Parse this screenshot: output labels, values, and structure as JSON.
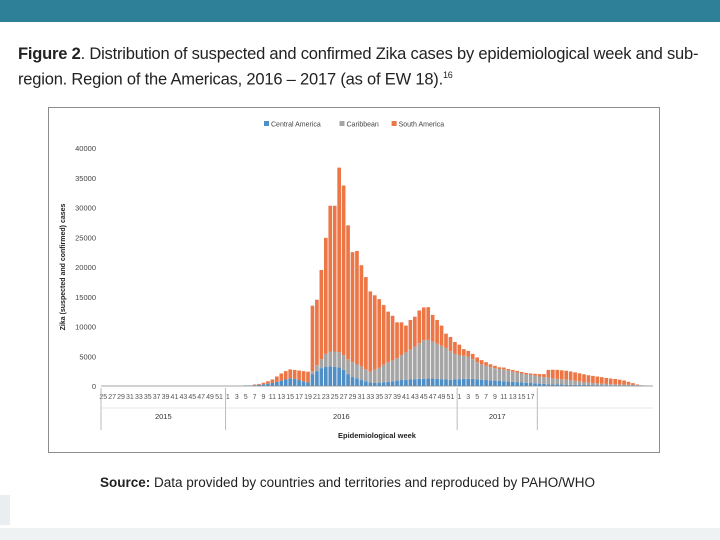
{
  "slide": {
    "figure_label": "Figure 2",
    "caption": ". Distribution of suspected and confirmed Zika cases by epidemiological week and sub-region. Region of the Americas, 2016 – 2017 (as of EW 18).",
    "caption_ref": "16",
    "source_label": "Source:",
    "source_text": " Data provided by countries and territories and reproduced by PAHO/WHO"
  },
  "chart_data": {
    "type": "bar",
    "stacked": true,
    "title": "",
    "xlabel": "Epidemiological week",
    "ylabel": "Zika (suspected and confirmed) cases",
    "ylim": [
      0,
      40000
    ],
    "yticks": [
      0,
      5000,
      10000,
      15000,
      20000,
      25000,
      30000,
      35000,
      40000
    ],
    "legend_position": "top",
    "colors": {
      "Central America": "#4f8fc6",
      "Caribbean": "#a5a5a5",
      "South America": "#ec7645"
    },
    "week_labels": {
      "2015": [
        25,
        27,
        29,
        31,
        33,
        35,
        37,
        39,
        41,
        43,
        45,
        47,
        49,
        51
      ],
      "2016": [
        1,
        3,
        5,
        7,
        9,
        11,
        13,
        15,
        17,
        19,
        21,
        23,
        25,
        27,
        29,
        31,
        33,
        35,
        37,
        39,
        41,
        43,
        45,
        47,
        49,
        51
      ],
      "2017": [
        1,
        3,
        5,
        7,
        9,
        11,
        13,
        15,
        17
      ]
    },
    "year_groups": [
      "2015",
      "2016",
      "2017"
    ],
    "series": [
      {
        "name": "Central America",
        "values": [
          0,
          0,
          0,
          0,
          0,
          0,
          0,
          0,
          0,
          0,
          0,
          0,
          0,
          0,
          0,
          0,
          0,
          0,
          0,
          0,
          0,
          0,
          0,
          0,
          0,
          0,
          0,
          0,
          0,
          0,
          0,
          0,
          100,
          100,
          150,
          200,
          300,
          400,
          500,
          700,
          900,
          1100,
          1300,
          1200,
          1000,
          800,
          600,
          2000,
          2500,
          3000,
          3200,
          3300,
          3200,
          3100,
          2700,
          2000,
          1500,
          1300,
          1000,
          800,
          600,
          550,
          500,
          600,
          700,
          800,
          900,
          1000,
          1050,
          1100,
          1150,
          1200,
          1200,
          1250,
          1250,
          1200,
          1150,
          1100,
          1050,
          1100,
          1150,
          1200,
          1200,
          1200,
          1100,
          1050,
          1000,
          950,
          900,
          850,
          800,
          750,
          700,
          650,
          600,
          550,
          500,
          450,
          400,
          350,
          300,
          280,
          260,
          240,
          220,
          200,
          190,
          180,
          170,
          160,
          150,
          140,
          130,
          120,
          110,
          100,
          100,
          90,
          90,
          80,
          70,
          60,
          50,
          30
        ],
        "values_note": "EW 25/2015 through EW 18/2017"
      },
      {
        "name": "Caribbean",
        "values": [
          0,
          0,
          0,
          0,
          0,
          0,
          0,
          0,
          0,
          0,
          0,
          0,
          0,
          0,
          0,
          0,
          0,
          0,
          0,
          0,
          0,
          0,
          0,
          0,
          0,
          0,
          0,
          0,
          0,
          0,
          0,
          0,
          0,
          0,
          0,
          0,
          0,
          0,
          0,
          0,
          0,
          0,
          0,
          0,
          0,
          0,
          0,
          500,
          1000,
          1500,
          2200,
          2500,
          2600,
          2600,
          2500,
          2500,
          2500,
          2400,
          2300,
          2000,
          1800,
          2200,
          2600,
          3000,
          3300,
          3500,
          3800,
          4200,
          4600,
          5000,
          5500,
          6000,
          6500,
          6500,
          6200,
          5900,
          5600,
          5300,
          4800,
          4300,
          4000,
          3900,
          3700,
          3300,
          2900,
          2600,
          2400,
          2200,
          2100,
          2000,
          2000,
          1800,
          1700,
          1600,
          1500,
          1400,
          1350,
          1300,
          1200,
          1150,
          1100,
          1000,
          950,
          900,
          850,
          800,
          700,
          600,
          500,
          400,
          350,
          300,
          260,
          230,
          200,
          180,
          160,
          140,
          120,
          100,
          80,
          60,
          40,
          20
        ]
      },
      {
        "name": "South America",
        "values": [
          0,
          0,
          0,
          0,
          0,
          0,
          0,
          0,
          0,
          0,
          0,
          0,
          0,
          0,
          0,
          0,
          0,
          0,
          0,
          0,
          0,
          0,
          0,
          0,
          0,
          0,
          0,
          0,
          0,
          0,
          0,
          0,
          0,
          0,
          100,
          150,
          250,
          400,
          600,
          900,
          1200,
          1400,
          1500,
          1500,
          1600,
          1700,
          1800,
          11000,
          11000,
          15000,
          19500,
          24500,
          24500,
          31000,
          28500,
          22500,
          18500,
          19000,
          17000,
          15500,
          13500,
          12500,
          11500,
          10000,
          8500,
          7500,
          6000,
          5500,
          4500,
          5000,
          5000,
          5500,
          5500,
          5500,
          4500,
          4000,
          3400,
          2400,
          2400,
          2000,
          1800,
          1100,
          1000,
          900,
          800,
          700,
          600,
          500,
          400,
          300,
          300,
          300,
          300,
          300,
          250,
          250,
          250,
          300,
          400,
          500,
          1300,
          1450,
          1500,
          1500,
          1500,
          1450,
          1400,
          1350,
          1300,
          1250,
          1200,
          1150,
          1100,
          1000,
          950,
          900,
          800,
          700,
          500,
          300,
          100
        ]
      }
    ]
  }
}
